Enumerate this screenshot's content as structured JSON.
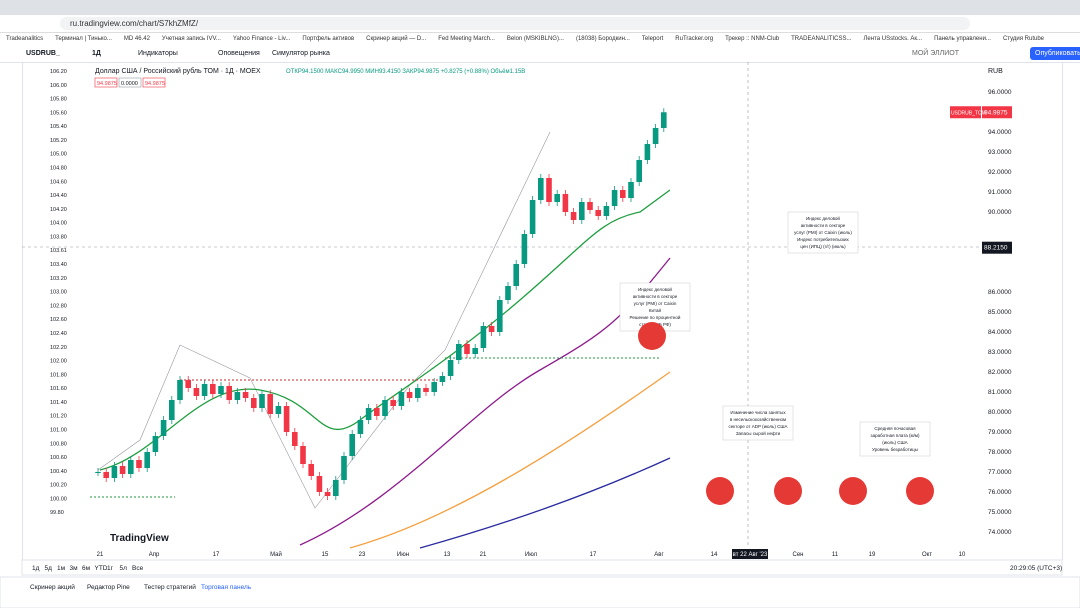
{
  "browser": {
    "url": "ru.tradingview.com/chart/S7khZMfZ/",
    "bookmarks": [
      "Tradeanalitics",
      "Терминал | Тинько...",
      "MD 46.42",
      "Учетная запись IVV...",
      "Yahoo Finance - Liv...",
      "Портфель активов",
      "Скринер акций — D...",
      "Fed Meeting March...",
      "Belon (MSKIBLNG)...",
      "(18038) Бородкин...",
      "Teleport",
      "RuTracker.org",
      "Трекер :: NNM-Club",
      "TRADEANALITICSS...",
      "Лента USstocks. Ак...",
      "Панель управлени...",
      "Студия Rutube"
    ]
  },
  "toolbar": {
    "symbol": "USDRUB_",
    "interval": "1Д",
    "items": [
      "Индикаторы",
      "Оповещения",
      "Симулятор рынка"
    ],
    "layout": "МОЙ ЭЛЛИОТ",
    "publish": "Опубликовать"
  },
  "legend": {
    "title": "Доллар США / Российский рубль ТОМ · 1Д · MOEX",
    "ohlc": "ОТКР94.1500 МАКС94.9950 МИН93.4150 ЗАКР94.9875 +0.8275 (+0.88%) Объём1.15B",
    "price_boxes": [
      "94.9875",
      "0.0000",
      "94.9875"
    ]
  },
  "candles": {
    "close": [
      77.0,
      76.7,
      77.3,
      76.9,
      77.6,
      77.2,
      78.0,
      78.8,
      79.6,
      80.6,
      81.6,
      81.2,
      80.8,
      81.4,
      80.9,
      81.3,
      80.6,
      81.0,
      80.7,
      80.2,
      80.9,
      79.9,
      80.3,
      79.0,
      78.3,
      77.4,
      76.8,
      76.0,
      75.8,
      76.6,
      77.8,
      78.9,
      79.6,
      80.2,
      79.8,
      80.6,
      80.3,
      81.0,
      80.7,
      81.2,
      81.0,
      81.5,
      81.8,
      82.6,
      83.4,
      82.9,
      83.2,
      84.3,
      84.0,
      85.6,
      86.3,
      87.4,
      88.9,
      90.6,
      91.7,
      90.5,
      90.9,
      90.0,
      89.6,
      90.5,
      90.1,
      89.8,
      90.3,
      91.1,
      90.7,
      91.5,
      92.6,
      93.4,
      94.2,
      94.9875
    ]
  },
  "price_axis": {
    "unit": "RUB",
    "ticks": [
      {
        "value": 96,
        "label": "96.0000"
      },
      {
        "value": 94,
        "label": "94.0000"
      },
      {
        "value": 93,
        "label": "93.0000"
      },
      {
        "value": 92,
        "label": "92.0000"
      },
      {
        "value": 91,
        "label": "91.0000"
      },
      {
        "value": 90,
        "label": "90.0000"
      },
      {
        "value": 86,
        "label": "86.0000"
      },
      {
        "value": 85,
        "label": "85.0000"
      },
      {
        "value": 84,
        "label": "84.0000"
      },
      {
        "value": 83,
        "label": "83.0000"
      },
      {
        "value": 82,
        "label": "82.0000"
      },
      {
        "value": 81,
        "label": "81.0000"
      },
      {
        "value": 80,
        "label": "80.0000"
      },
      {
        "value": 79,
        "label": "79.0000"
      },
      {
        "value": 78,
        "label": "78.0000"
      },
      {
        "value": 77,
        "label": "77.0000"
      },
      {
        "value": 76,
        "label": "76.0000"
      },
      {
        "value": 75,
        "label": "75.0000"
      },
      {
        "value": 74,
        "label": "74.0000"
      }
    ],
    "last": {
      "value": 94.9875,
      "label": "94.9875",
      "name": "USDRUB_TOM"
    },
    "crosshair": {
      "value": 88.215,
      "label": "88.2150"
    }
  },
  "left_axis": [
    "106.20",
    "106.00",
    "105.80",
    "105.60",
    "105.40",
    "105.20",
    "105.00",
    "104.80",
    "104.60",
    "104.40",
    "104.20",
    "104.00",
    "103.80",
    "103.61",
    "103.40",
    "103.20",
    "103.00",
    "102.80",
    "102.60",
    "102.40",
    "102.20",
    "102.00",
    "101.80",
    "101.60",
    "101.40",
    "101.20",
    "101.00",
    "100.80",
    "100.60",
    "100.40",
    "100.20",
    "100.00",
    "99.80"
  ],
  "date_axis": [
    "21",
    "Апр",
    "17",
    "Май",
    "15",
    "23",
    "Июн",
    "13",
    "21",
    "Июл",
    "17",
    "Авг",
    "14",
    "вт 22 Авг '23",
    "Сен",
    "11",
    "19",
    "Окт",
    "10"
  ],
  "notes": [
    [
      "Индекс деловой",
      "активности в секторе",
      "услуг (PMI) от Caixin",
      "Китай",
      "Решение по процентной",
      "ставке (ЦБ РФ)"
    ],
    [
      "Изменение числа занятых",
      "в несельскохозяйственном",
      "секторе от ADP (июль) США",
      "Запасы сырой нефти"
    ],
    [
      "Индекс деловой",
      "активности в секторе",
      "услуг (PMI) от Caixin (июль)",
      "Индекс потребительских",
      "цен (ИПЦ) (г/г) (июль)"
    ],
    [
      "Средняя почасовая",
      "заработная плата (м/м)",
      "(июль) США",
      "Уровень безработицы"
    ]
  ],
  "range_bar": {
    "ranges": [
      "1д",
      "5д",
      "1м",
      "3м",
      "6м",
      "YTD",
      "1г",
      "5л",
      "Все"
    ],
    "clock": "20:29:05 (UTC+3)"
  },
  "panel_tabs": [
    "Скринер акций",
    "Редактор Pine",
    "Тестер стратегий",
    "Торговая панель"
  ],
  "brand": "TradingView"
}
